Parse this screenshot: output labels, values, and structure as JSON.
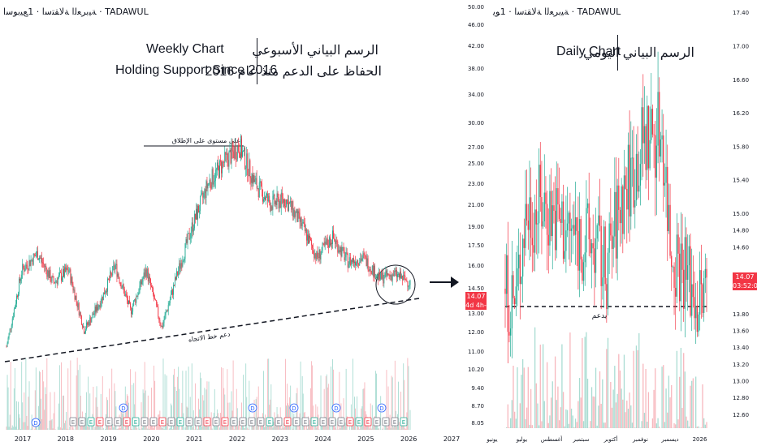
{
  "weekly": {
    "watermark": "TADAWUL · ﺔﻴﺑﺮﻌﻟا ﺔﻟﺎﻘﺘﺳا · 1ﻊﻴﺑﻮﺳا",
    "title_en_1": "Weekly Chart",
    "title_en_2": "Holding Support Since 2016",
    "title_ar_1": "الرسم البياني الأسبوعي",
    "title_ar_2": "الحفاظ على الدعم منذ عام 2016",
    "launch_label": "أعلى مستوى على الإطلاق",
    "trend_label": "دعم خط الاتجاه",
    "x_ticks": [
      "2017",
      "2018",
      "2019",
      "2020",
      "2021",
      "2022",
      "2023",
      "2024",
      "2025",
      "2026",
      "2027"
    ],
    "event_markers": [
      "D",
      "E",
      "E",
      "E",
      "E",
      "E",
      "E",
      "E",
      "E",
      "E",
      "E",
      "E",
      "E",
      "E",
      "E",
      "E",
      "E",
      "E",
      "E",
      "E",
      "E",
      "E",
      "E",
      "E",
      "E",
      "E",
      "E",
      "E",
      "E",
      "E",
      "E",
      "E",
      "E",
      "E",
      "E",
      "E",
      "E",
      "E",
      "E",
      "E"
    ]
  },
  "daily": {
    "watermark": "TADAWUL · ﺔﻴﺑﺮﻌﻟا ﺔﻟﺎﻘﺘﺳا · 1ﻮﻳ",
    "title_en": "Daily Chart",
    "title_ar": "الرسم البياني اليومي",
    "support_label": "يدعم",
    "price_tag": "14.07",
    "countdown_left": "4d 4h-",
    "countdown_right": "03:52:01",
    "x_ticks": [
      "يونيو",
      "يوليو",
      "أغسطس",
      "سبتمبر",
      "أكتوبر",
      "نوفمبر",
      "ديسمبر",
      "2026"
    ],
    "left_axis_ticks": [
      "50.00",
      "46.00",
      "42.00",
      "38.00",
      "34.00",
      "30.00",
      "27.00",
      "25.00",
      "23.00",
      "21.00",
      "19.00",
      "17.50",
      "16.00",
      "14.50",
      "13.00",
      "12.00",
      "11.00",
      "10.20",
      "9.40",
      "8.70",
      "8.05"
    ],
    "right_axis_ticks": [
      "17.40",
      "17.00",
      "16.60",
      "16.20",
      "15.80",
      "15.40",
      "15.00",
      "14.80",
      "14.60",
      "14.20",
      "13.80",
      "13.60",
      "13.40",
      "13.20",
      "13.00",
      "12.80",
      "12.60"
    ]
  },
  "colors": {
    "up": "#22ab94",
    "down": "#f23645",
    "up_vol": "#a9dcd2",
    "down_vol": "#f7b7bd"
  },
  "chart_data": [
    {
      "type": "candlestick",
      "title": "Weekly Chart",
      "x": [
        "2016-11",
        "2017",
        "2017-06",
        "2018",
        "2018-06",
        "2018-12",
        "2019",
        "2019-06",
        "2019-12",
        "2020",
        "2020-06",
        "2020-12",
        "2021",
        "2021-06",
        "2021-12",
        "2022",
        "2022-06",
        "2022-12",
        "2023",
        "2023-06",
        "2023-12",
        "2024",
        "2024-06",
        "2024-12",
        "2025",
        "2025-06",
        "2025-12"
      ],
      "close_approx": [
        13.2,
        22.5,
        24.5,
        21.0,
        22.5,
        15.2,
        18.5,
        23.0,
        17.5,
        22.5,
        15.5,
        22.0,
        28.0,
        33.0,
        35.5,
        37.5,
        33.0,
        30.5,
        31.0,
        28.0,
        24.0,
        26.5,
        23.5,
        24.0,
        21.5,
        22.0,
        21.0
      ],
      "annotations": [
        "Weekly Chart",
        "Holding Support Since 2016",
        "أعلى مستوى على الإطلاق",
        "دعم خط الاتجاه"
      ]
    },
    {
      "type": "candlestick",
      "title": "Daily Chart",
      "x": [
        "يونيو",
        "يوليو",
        "أغسطس",
        "سبتمبر",
        "أكتوبر",
        "نوفمبر",
        "ديسمبر",
        "2026"
      ],
      "close_approx": [
        14.2,
        15.1,
        14.8,
        14.6,
        15.5,
        16.0,
        14.6,
        14.1
      ],
      "last_price": 14.07,
      "support": 13.72,
      "ylim": [
        12.55,
        17.45
      ]
    }
  ]
}
